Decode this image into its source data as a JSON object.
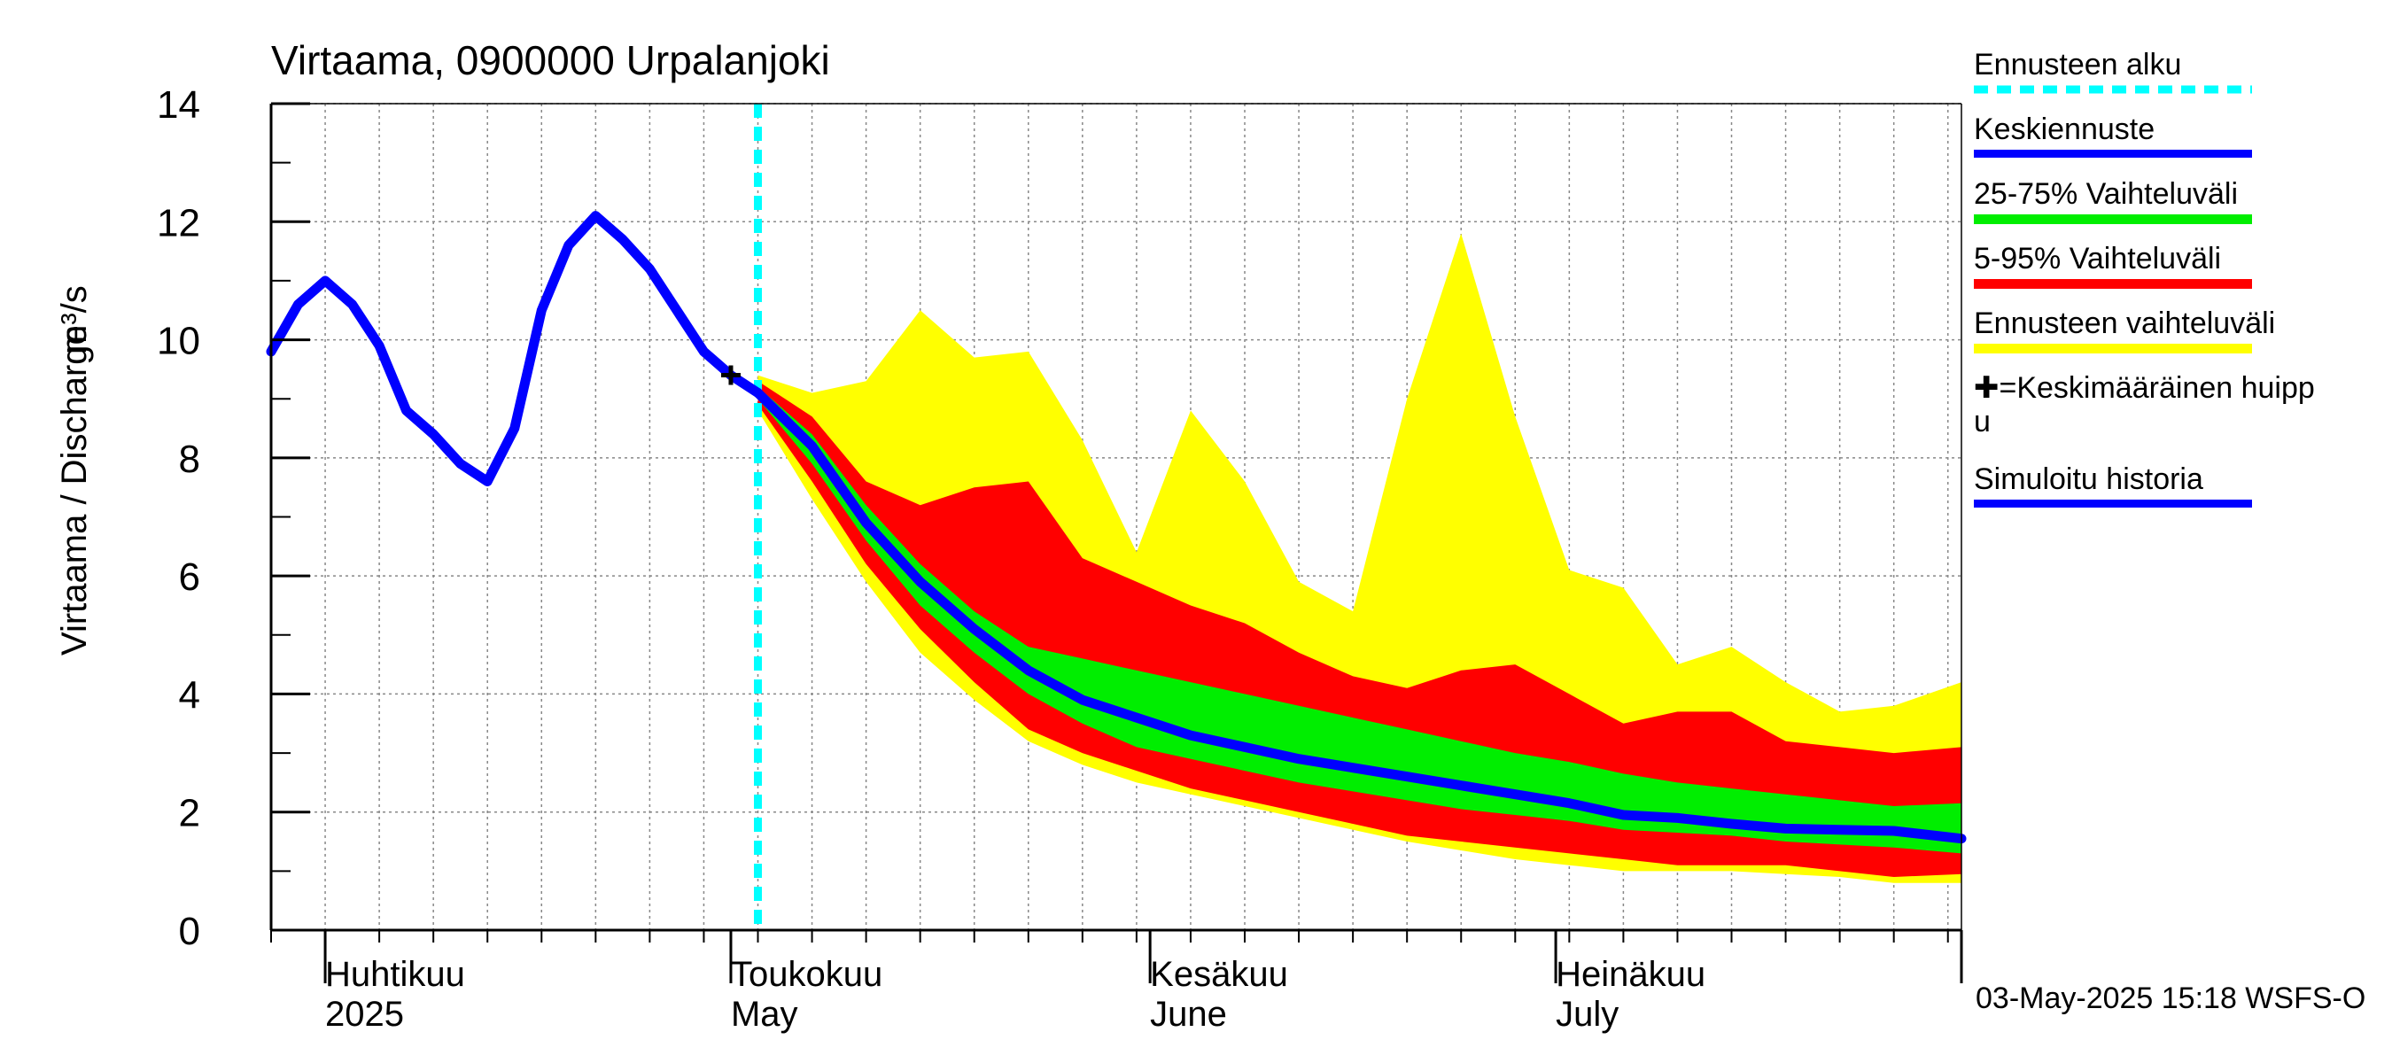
{
  "chart_data": {
    "type": "area",
    "title": "Virtaama, 0900000 Urpalanjoki",
    "ylabel": "Virtaama / Discharge",
    "yunit": "m³/s",
    "ylim": [
      0,
      14
    ],
    "yticks": [
      "0",
      "2",
      "4",
      "6",
      "8",
      "10",
      "12",
      "14"
    ],
    "xlim": [
      "2025-03-28",
      "2025-07-31"
    ],
    "month_labels": [
      {
        "fi": "Huhtikuu",
        "en": "2025",
        "date": "2025-04-01"
      },
      {
        "fi": "Toukokuu",
        "en": "May",
        "date": "2025-05-01"
      },
      {
        "fi": "Kesäkuu",
        "en": "June",
        "date": "2025-06-01"
      },
      {
        "fi": "Heinäkuu",
        "en": "July",
        "date": "2025-07-01"
      }
    ],
    "forecast_start": "2025-05-03",
    "mean_peak": {
      "date": "2025-05-01",
      "value": 9.4
    },
    "series": [
      {
        "name": "Simuloitu historia",
        "color": "#0000ff",
        "kind": "line",
        "x": [
          "2025-03-28",
          "2025-03-30",
          "2025-04-01",
          "2025-04-03",
          "2025-04-05",
          "2025-04-07",
          "2025-04-09",
          "2025-04-11",
          "2025-04-13",
          "2025-04-15",
          "2025-04-17",
          "2025-04-19",
          "2025-04-21",
          "2025-04-23",
          "2025-04-25",
          "2025-04-27",
          "2025-04-29",
          "2025-04-30",
          "2025-05-01",
          "2025-05-03"
        ],
        "y": [
          9.8,
          10.6,
          11.0,
          10.6,
          9.9,
          8.8,
          8.4,
          7.9,
          7.6,
          8.5,
          10.5,
          11.6,
          12.1,
          11.7,
          11.2,
          10.5,
          9.8,
          9.6,
          9.4,
          9.1
        ]
      },
      {
        "name": "Keskiennuste",
        "color": "#0000ff",
        "kind": "line",
        "x": [
          "2025-05-03",
          "2025-05-07",
          "2025-05-11",
          "2025-05-15",
          "2025-05-19",
          "2025-05-23",
          "2025-05-27",
          "2025-05-31",
          "2025-06-04",
          "2025-06-08",
          "2025-06-12",
          "2025-06-16",
          "2025-06-20",
          "2025-06-24",
          "2025-06-28",
          "2025-07-02",
          "2025-07-06",
          "2025-07-10",
          "2025-07-14",
          "2025-07-18",
          "2025-07-22",
          "2025-07-26",
          "2025-07-31"
        ],
        "y": [
          9.1,
          8.2,
          6.9,
          5.9,
          5.1,
          4.4,
          3.9,
          3.6,
          3.3,
          3.1,
          2.9,
          2.75,
          2.6,
          2.45,
          2.3,
          2.15,
          1.95,
          1.9,
          1.8,
          1.72,
          1.7,
          1.68,
          1.55
        ]
      },
      {
        "name": "25-75% Vaihteluväli",
        "color": "#00ee00",
        "kind": "band",
        "x": [
          "2025-05-03",
          "2025-05-07",
          "2025-05-11",
          "2025-05-15",
          "2025-05-19",
          "2025-05-23",
          "2025-05-27",
          "2025-05-31",
          "2025-06-04",
          "2025-06-08",
          "2025-06-12",
          "2025-06-16",
          "2025-06-20",
          "2025-06-24",
          "2025-06-28",
          "2025-07-02",
          "2025-07-06",
          "2025-07-10",
          "2025-07-14",
          "2025-07-18",
          "2025-07-22",
          "2025-07-26",
          "2025-07-31"
        ],
        "low": [
          9.0,
          7.9,
          6.6,
          5.5,
          4.7,
          4.0,
          3.5,
          3.1,
          2.9,
          2.7,
          2.5,
          2.35,
          2.2,
          2.05,
          1.95,
          1.85,
          1.7,
          1.65,
          1.6,
          1.5,
          1.45,
          1.4,
          1.3
        ],
        "high": [
          9.2,
          8.4,
          7.2,
          6.2,
          5.4,
          4.8,
          4.6,
          4.4,
          4.2,
          4.0,
          3.8,
          3.6,
          3.4,
          3.2,
          3.0,
          2.85,
          2.65,
          2.5,
          2.4,
          2.3,
          2.2,
          2.1,
          2.15
        ]
      },
      {
        "name": "5-95% Vaihteluväli",
        "color": "#ff0000",
        "kind": "band",
        "x": [
          "2025-05-03",
          "2025-05-07",
          "2025-05-11",
          "2025-05-15",
          "2025-05-19",
          "2025-05-23",
          "2025-05-27",
          "2025-05-31",
          "2025-06-04",
          "2025-06-08",
          "2025-06-12",
          "2025-06-16",
          "2025-06-20",
          "2025-06-24",
          "2025-06-28",
          "2025-07-02",
          "2025-07-06",
          "2025-07-10",
          "2025-07-14",
          "2025-07-18",
          "2025-07-22",
          "2025-07-26",
          "2025-07-31"
        ],
        "low": [
          8.9,
          7.6,
          6.2,
          5.1,
          4.2,
          3.4,
          3.0,
          2.7,
          2.4,
          2.2,
          2.0,
          1.8,
          1.6,
          1.5,
          1.4,
          1.3,
          1.2,
          1.1,
          1.1,
          1.1,
          1.0,
          0.9,
          0.95
        ],
        "high": [
          9.3,
          8.7,
          7.6,
          7.2,
          7.5,
          7.6,
          6.3,
          5.9,
          5.5,
          5.2,
          4.7,
          4.3,
          4.1,
          4.4,
          4.5,
          4.0,
          3.5,
          3.7,
          3.7,
          3.2,
          3.1,
          3.0,
          3.1
        ]
      },
      {
        "name": "Ennusteen vaihteluväli",
        "color": "#ffff00",
        "kind": "band",
        "x": [
          "2025-05-03",
          "2025-05-07",
          "2025-05-11",
          "2025-05-15",
          "2025-05-19",
          "2025-05-23",
          "2025-05-27",
          "2025-05-31",
          "2025-06-04",
          "2025-06-08",
          "2025-06-12",
          "2025-06-16",
          "2025-06-20",
          "2025-06-24",
          "2025-06-28",
          "2025-07-02",
          "2025-07-06",
          "2025-07-10",
          "2025-07-14",
          "2025-07-18",
          "2025-07-22",
          "2025-07-26",
          "2025-07-31"
        ],
        "low": [
          8.8,
          7.3,
          5.9,
          4.7,
          3.9,
          3.2,
          2.8,
          2.5,
          2.3,
          2.1,
          1.9,
          1.7,
          1.5,
          1.35,
          1.2,
          1.1,
          1.0,
          1.0,
          1.0,
          0.95,
          0.9,
          0.8,
          0.8
        ],
        "high": [
          9.4,
          9.1,
          9.3,
          10.5,
          9.7,
          9.8,
          8.3,
          6.4,
          8.8,
          7.6,
          5.9,
          5.4,
          9.0,
          11.8,
          8.7,
          6.1,
          5.8,
          4.5,
          4.8,
          4.2,
          3.7,
          3.8,
          4.2
        ]
      }
    ]
  },
  "legend": {
    "forecast_start": {
      "label": "Ennusteen alku",
      "color": "#00ffff"
    },
    "mean_forecast": {
      "label": "Keskiennuste",
      "color": "#0000ff"
    },
    "range_25_75": {
      "label": "25-75% Vaihteluväli",
      "color": "#00ee00"
    },
    "range_5_95": {
      "label": "5-95% Vaihteluväli",
      "color": "#ff0000"
    },
    "forecast_range": {
      "label": "Ennusteen vaihteluväli",
      "color": "#ffff00"
    },
    "mean_peak_line1": "✚=Keskimääräinen huipp",
    "mean_peak_line2": "u",
    "simulated_history": {
      "label": "Simuloitu historia",
      "color": "#0000ff"
    }
  },
  "timestamp": "03-May-2025 15:18 WSFS-O"
}
